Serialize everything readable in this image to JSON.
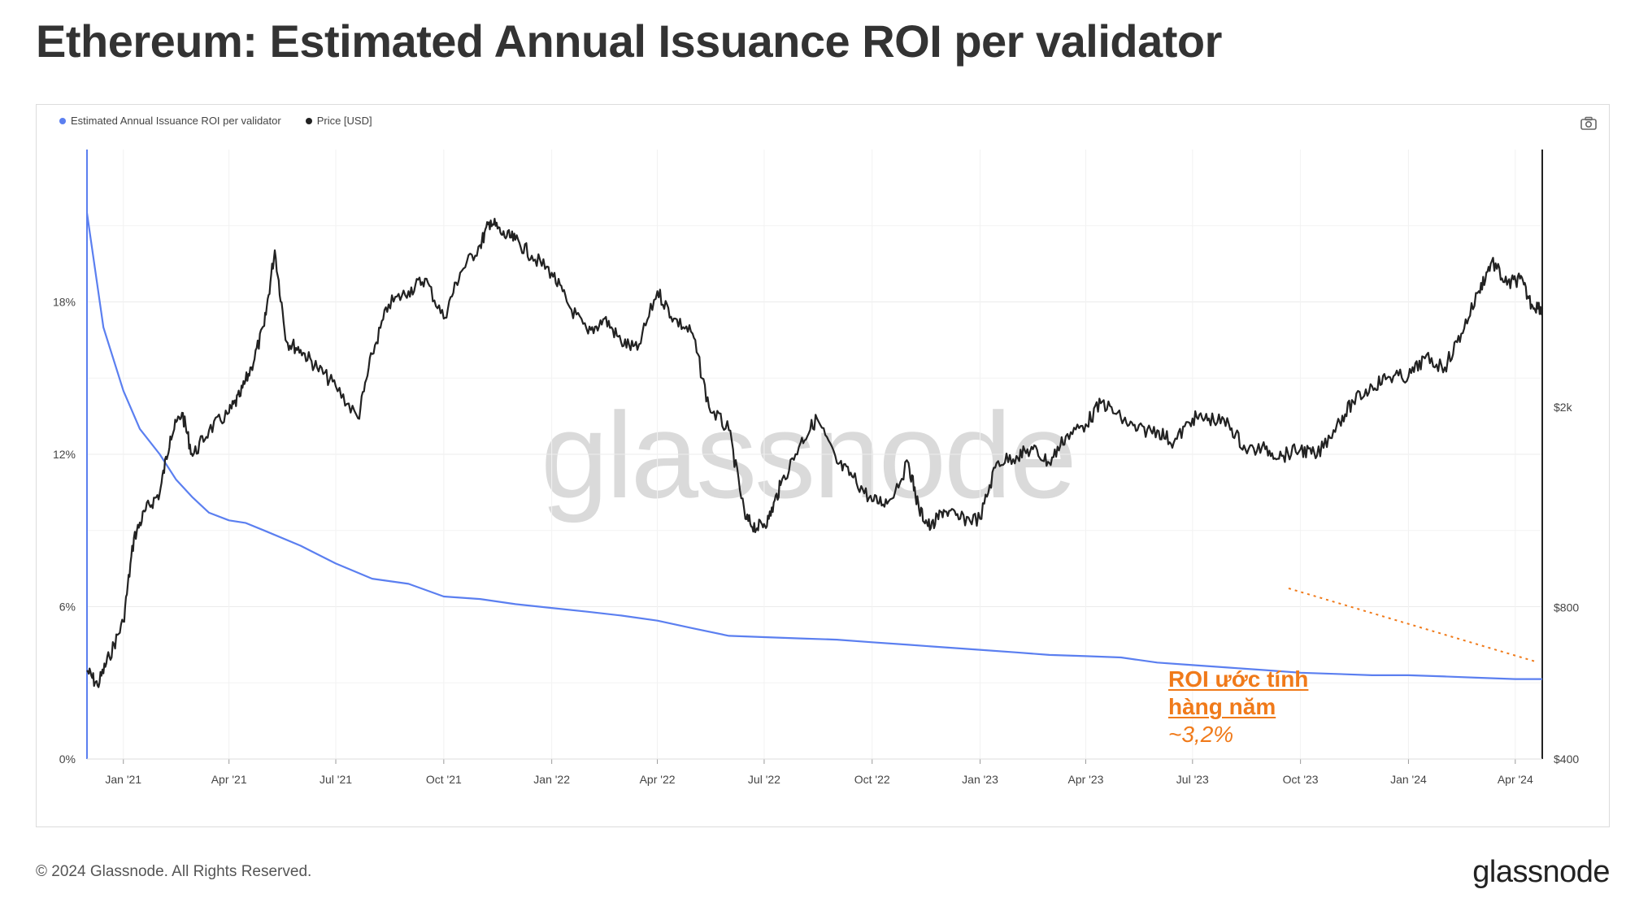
{
  "page": {
    "title": "Ethereum: Estimated Annual Issuance ROI per validator",
    "copyright": "© 2024 Glassnode. All Rights Reserved.",
    "logo_text": "glassnode",
    "watermark": "glassnode"
  },
  "legend": [
    {
      "label": "Estimated Annual Issuance ROI per validator",
      "color": "#5b7ff0"
    },
    {
      "label": "Price [USD]",
      "color": "#222222"
    }
  ],
  "annotation": {
    "line1": "ROI ước tính",
    "line2": "hàng năm",
    "value": "~3,2%",
    "color": "#f07a1a"
  },
  "icons": {
    "camera": "camera-icon"
  },
  "chart_data": {
    "type": "line",
    "title": "Ethereum: Estimated Annual Issuance ROI per validator",
    "x_range": [
      "2020-12-01",
      "2024-04-24"
    ],
    "x_ticks": [
      "Jan '21",
      "Apr '21",
      "Jul '21",
      "Oct '21",
      "Jan '22",
      "Apr '22",
      "Jul '22",
      "Oct '22",
      "Jan '23",
      "Apr '23",
      "Jul '23",
      "Oct '23",
      "Jan '24",
      "Apr '24"
    ],
    "x_tick_dates": [
      "2021-01-01",
      "2021-04-01",
      "2021-07-01",
      "2021-10-01",
      "2022-01-01",
      "2022-04-01",
      "2022-07-01",
      "2022-10-01",
      "2023-01-01",
      "2023-04-01",
      "2023-07-01",
      "2023-10-01",
      "2024-01-01",
      "2024-04-01"
    ],
    "y_left": {
      "label": "",
      "ticks": [
        "0%",
        "6%",
        "12%",
        "18%"
      ],
      "tick_values": [
        0,
        6,
        12,
        18
      ],
      "range": [
        0,
        24
      ]
    },
    "y_right": {
      "label": "",
      "scale": "log",
      "ticks": [
        "$400",
        "$800",
        "$2k"
      ],
      "tick_values": [
        400,
        800,
        2000
      ],
      "range": [
        400,
        6500
      ]
    },
    "grid": true,
    "legend_position": "top-left",
    "series": [
      {
        "name": "Estimated Annual Issuance ROI per validator",
        "axis": "left",
        "color": "#5b7ff0",
        "x": [
          "2020-12-01",
          "2020-12-15",
          "2021-01-01",
          "2021-01-15",
          "2021-02-01",
          "2021-02-15",
          "2021-03-01",
          "2021-03-15",
          "2021-04-01",
          "2021-04-15",
          "2021-05-01",
          "2021-06-01",
          "2021-07-01",
          "2021-08-01",
          "2021-09-01",
          "2021-10-01",
          "2021-11-01",
          "2021-12-01",
          "2022-01-01",
          "2022-02-01",
          "2022-03-01",
          "2022-04-01",
          "2022-05-01",
          "2022-06-01",
          "2022-07-01",
          "2022-08-01",
          "2022-09-01",
          "2022-10-01",
          "2022-11-01",
          "2022-12-01",
          "2023-01-01",
          "2023-02-01",
          "2023-03-01",
          "2023-04-01",
          "2023-05-01",
          "2023-06-01",
          "2023-07-01",
          "2023-08-01",
          "2023-09-01",
          "2023-10-01",
          "2023-11-01",
          "2023-12-01",
          "2024-01-01",
          "2024-02-01",
          "2024-03-01",
          "2024-04-01",
          "2024-04-24"
        ],
        "values": [
          21.5,
          17.0,
          14.5,
          13.0,
          12.0,
          11.0,
          10.3,
          9.7,
          9.4,
          9.3,
          9.0,
          8.4,
          7.7,
          7.1,
          6.9,
          6.4,
          6.3,
          6.1,
          5.95,
          5.8,
          5.65,
          5.45,
          5.15,
          4.85,
          4.8,
          4.75,
          4.7,
          4.6,
          4.5,
          4.4,
          4.3,
          4.2,
          4.1,
          4.05,
          4.0,
          3.8,
          3.7,
          3.6,
          3.5,
          3.4,
          3.35,
          3.3,
          3.3,
          3.25,
          3.2,
          3.15,
          3.15
        ]
      },
      {
        "name": "Price [USD]",
        "axis": "right",
        "color": "#222222",
        "x": [
          "2020-12-01",
          "2020-12-10",
          "2020-12-20",
          "2021-01-01",
          "2021-01-10",
          "2021-01-20",
          "2021-02-01",
          "2021-02-10",
          "2021-02-20",
          "2021-03-01",
          "2021-03-15",
          "2021-04-01",
          "2021-04-10",
          "2021-04-20",
          "2021-05-01",
          "2021-05-10",
          "2021-05-20",
          "2021-06-01",
          "2021-06-15",
          "2021-07-01",
          "2021-07-20",
          "2021-08-01",
          "2021-08-15",
          "2021-09-01",
          "2021-09-15",
          "2021-10-01",
          "2021-10-15",
          "2021-11-01",
          "2021-11-10",
          "2021-11-20",
          "2021-12-01",
          "2021-12-15",
          "2022-01-01",
          "2022-01-15",
          "2022-02-01",
          "2022-02-15",
          "2022-03-01",
          "2022-03-15",
          "2022-04-01",
          "2022-04-15",
          "2022-05-01",
          "2022-05-15",
          "2022-06-01",
          "2022-06-15",
          "2022-06-25",
          "2022-07-05",
          "2022-07-15",
          "2022-08-01",
          "2022-08-15",
          "2022-09-01",
          "2022-09-15",
          "2022-10-01",
          "2022-10-15",
          "2022-11-01",
          "2022-11-10",
          "2022-11-20",
          "2022-12-01",
          "2022-12-15",
          "2023-01-01",
          "2023-01-15",
          "2023-02-01",
          "2023-02-15",
          "2023-03-01",
          "2023-03-15",
          "2023-04-01",
          "2023-04-15",
          "2023-05-01",
          "2023-05-15",
          "2023-06-01",
          "2023-06-15",
          "2023-07-01",
          "2023-07-15",
          "2023-08-01",
          "2023-08-15",
          "2023-09-01",
          "2023-09-15",
          "2023-10-01",
          "2023-10-15",
          "2023-11-01",
          "2023-11-15",
          "2023-12-01",
          "2023-12-15",
          "2024-01-01",
          "2024-01-15",
          "2024-02-01",
          "2024-02-15",
          "2024-03-01",
          "2024-03-12",
          "2024-03-25",
          "2024-04-05",
          "2024-04-15",
          "2024-04-24"
        ],
        "values": [
          600,
          560,
          640,
          750,
          1100,
          1250,
          1350,
          1750,
          1950,
          1600,
          1800,
          1950,
          2100,
          2400,
          2900,
          4100,
          2700,
          2600,
          2400,
          2200,
          1900,
          2550,
          3200,
          3400,
          3600,
          3000,
          3700,
          4200,
          4700,
          4400,
          4300,
          4000,
          3700,
          3200,
          2800,
          3000,
          2700,
          2600,
          3400,
          3000,
          2800,
          2000,
          1800,
          1200,
          1150,
          1200,
          1400,
          1700,
          1900,
          1550,
          1450,
          1300,
          1300,
          1550,
          1250,
          1150,
          1250,
          1200,
          1200,
          1550,
          1600,
          1650,
          1550,
          1750,
          1850,
          2050,
          1900,
          1800,
          1800,
          1700,
          1900,
          1900,
          1850,
          1650,
          1650,
          1600,
          1650,
          1600,
          1850,
          2050,
          2200,
          2300,
          2300,
          2500,
          2400,
          2800,
          3400,
          3900,
          3500,
          3600,
          3200,
          3150
        ]
      }
    ]
  }
}
